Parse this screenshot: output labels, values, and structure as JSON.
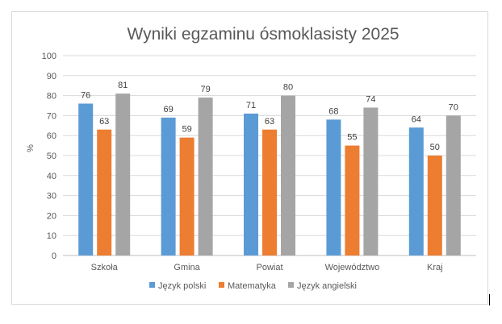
{
  "chart_data": {
    "type": "bar",
    "title": "Wyniki egzaminu ósmoklasisty 2025",
    "xlabel": "",
    "ylabel": "%",
    "ylim": [
      0,
      100
    ],
    "yticks": [
      0,
      10,
      20,
      30,
      40,
      50,
      60,
      70,
      80,
      90,
      100
    ],
    "grid": true,
    "legend_position": "bottom",
    "categories": [
      "Szkoła",
      "Gmina",
      "Powiat",
      "Województwo",
      "Kraj"
    ],
    "series": [
      {
        "name": "Język polski",
        "color": "#5b9bd5",
        "values": [
          76,
          69,
          71,
          68,
          64
        ]
      },
      {
        "name": "Matematyka",
        "color": "#ed7d31",
        "values": [
          63,
          59,
          63,
          55,
          50
        ]
      },
      {
        "name": "Język angielski",
        "color": "#a5a5a5",
        "values": [
          81,
          79,
          80,
          74,
          70
        ]
      }
    ]
  }
}
